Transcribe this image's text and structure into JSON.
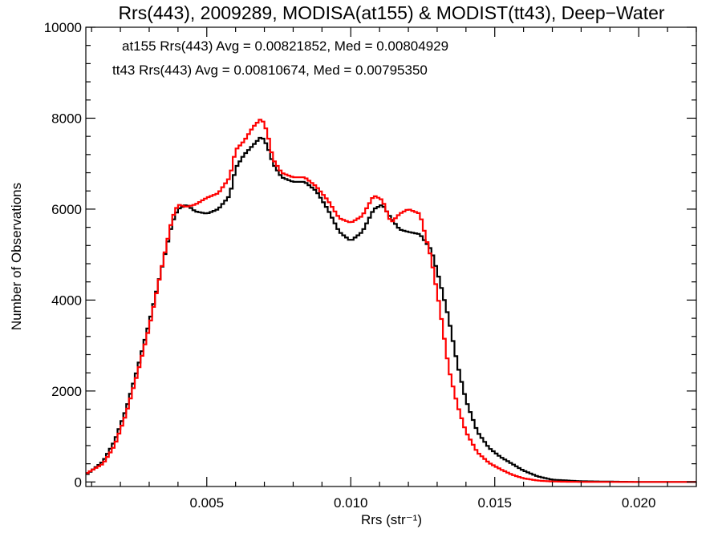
{
  "chart_data": {
    "type": "line",
    "title": "Rrs(443), 2009289, MODISA(at155) & MODIST(tt43), Deep−Water",
    "xlabel": "Rrs (str⁻¹)",
    "ylabel": "Number of Observations",
    "xlim": [
      0.0008,
      0.022
    ],
    "ylim": [
      -100,
      10000
    ],
    "x_ticks": [
      0.005,
      0.01,
      0.015,
      0.02
    ],
    "x_tick_labels": [
      "0.005",
      "0.010",
      "0.015",
      "0.020"
    ],
    "y_ticks": [
      0,
      2000,
      4000,
      6000,
      8000,
      10000
    ],
    "y_tick_labels": [
      "0",
      "2000",
      "4000",
      "6000",
      "8000",
      "10000"
    ],
    "grid": false,
    "annotations": [
      {
        "text": "at155 Rrs(443) Avg = 0.00821852, Med = 0.00804929",
        "color": "#000000"
      },
      {
        "text": "tt43 Rrs(443) Avg = 0.00810674, Med = 0.00795350",
        "color": "#ff0000"
      }
    ],
    "series": [
      {
        "color": "#000000",
        "x": [
          0.0008,
          0.0014,
          0.0018,
          0.0022,
          0.0026,
          0.003,
          0.0034,
          0.0038,
          0.004,
          0.0043,
          0.0046,
          0.005,
          0.0054,
          0.0058,
          0.006,
          0.0063,
          0.0066,
          0.0069,
          0.0071,
          0.0073,
          0.0076,
          0.008,
          0.0084,
          0.0088,
          0.0092,
          0.0096,
          0.01,
          0.0104,
          0.0108,
          0.0111,
          0.0114,
          0.0117,
          0.012,
          0.0124,
          0.0128,
          0.0131,
          0.0134,
          0.0137,
          0.014,
          0.0144,
          0.0148,
          0.0152,
          0.0156,
          0.016,
          0.0165,
          0.017,
          0.018,
          0.02,
          0.022
        ],
        "values": [
          150,
          450,
          900,
          1600,
          2500,
          3500,
          4600,
          5700,
          6000,
          6100,
          5950,
          5900,
          6000,
          6300,
          6900,
          7200,
          7400,
          7600,
          7400,
          7000,
          6700,
          6600,
          6600,
          6400,
          6000,
          5500,
          5300,
          5500,
          6000,
          6100,
          5800,
          5550,
          5500,
          5450,
          5100,
          4400,
          3600,
          2600,
          1800,
          1100,
          750,
          550,
          400,
          250,
          120,
          50,
          15,
          0,
          0
        ]
      },
      {
        "color": "#ff0000",
        "x": [
          0.0008,
          0.0014,
          0.0018,
          0.0022,
          0.0026,
          0.003,
          0.0034,
          0.0038,
          0.004,
          0.0043,
          0.0046,
          0.005,
          0.0054,
          0.0058,
          0.006,
          0.0063,
          0.0066,
          0.0069,
          0.0071,
          0.0073,
          0.0076,
          0.008,
          0.0084,
          0.0088,
          0.0092,
          0.0096,
          0.01,
          0.0104,
          0.0108,
          0.0111,
          0.0114,
          0.0117,
          0.012,
          0.0124,
          0.0128,
          0.0131,
          0.0134,
          0.0137,
          0.014,
          0.0144,
          0.0148,
          0.0152,
          0.0156,
          0.016,
          0.0165,
          0.017,
          0.018,
          0.02,
          0.022
        ],
        "values": [
          180,
          400,
          800,
          1500,
          2400,
          3400,
          4600,
          5800,
          6100,
          6050,
          6100,
          6250,
          6350,
          6700,
          7300,
          7500,
          7800,
          8000,
          7700,
          7100,
          6800,
          6700,
          6700,
          6500,
          6200,
          5800,
          5700,
          5850,
          6300,
          6200,
          5700,
          5900,
          6000,
          5900,
          4900,
          3800,
          2500,
          1700,
          1100,
          650,
          420,
          280,
          160,
          80,
          30,
          10,
          0,
          0,
          0
        ]
      }
    ]
  }
}
